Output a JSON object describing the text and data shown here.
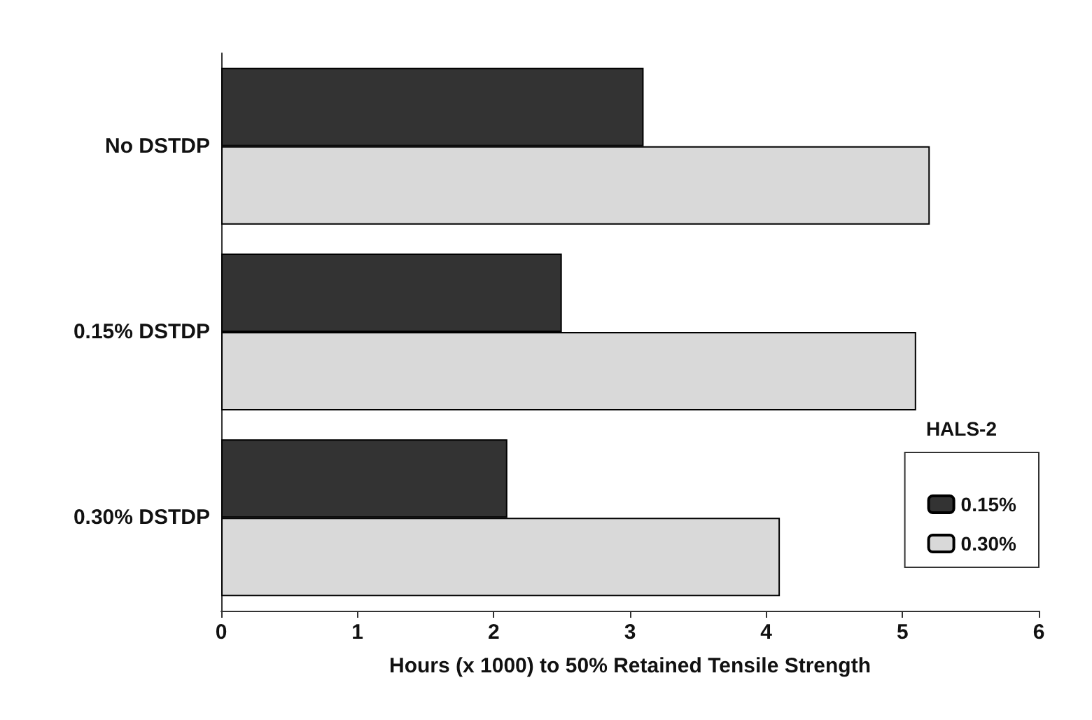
{
  "chart_data": {
    "type": "bar",
    "orientation": "horizontal",
    "xlabel": "Hours (x 1000) to 50% Retained Tensile Strength",
    "legend_title": "HALS-2",
    "categories": [
      "No DSTDP",
      "0.15% DSTDP",
      "0.30% DSTDP"
    ],
    "series": [
      {
        "name": "0.15%",
        "color": "#333333",
        "values": [
          3.1,
          2.5,
          2.1
        ]
      },
      {
        "name": "0.30%",
        "color": "#d9d9d9",
        "values": [
          5.2,
          5.1,
          4.1
        ]
      }
    ],
    "xlim": [
      0,
      6
    ],
    "xticks": [
      0,
      1,
      2,
      3,
      4,
      5,
      6
    ],
    "grid": false,
    "legend": "right"
  }
}
